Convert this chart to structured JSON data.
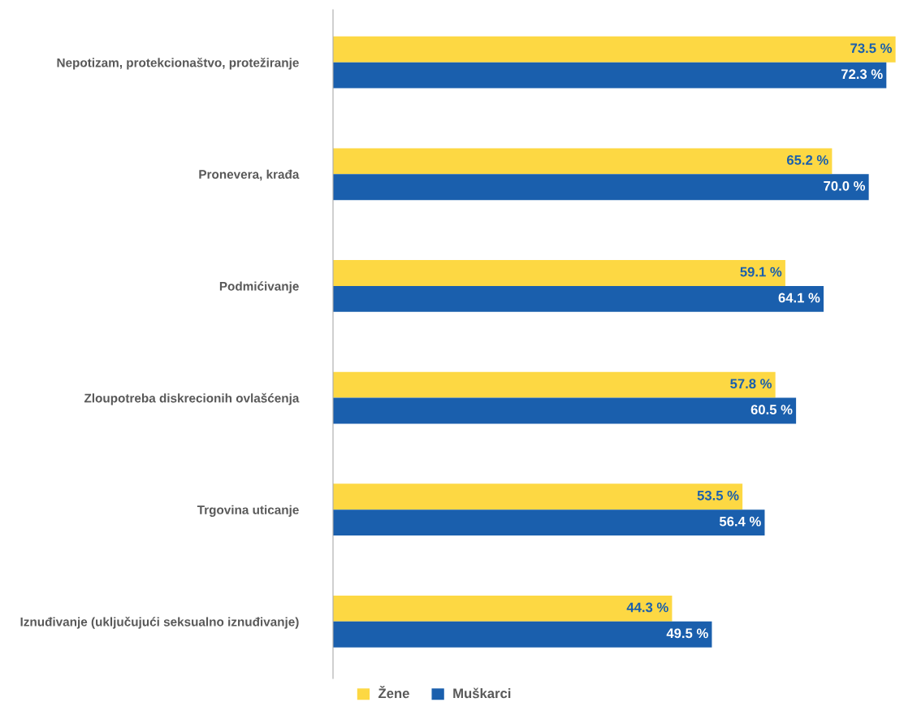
{
  "chart_data": {
    "type": "bar",
    "orientation": "horizontal",
    "categories": [
      "Nepotizam, protekcionaštvo, protežiranje",
      "Pronevera, krađa",
      "Podmićivanje",
      "Zloupotreba diskrecionih ovlašćenja",
      "Trgovina uticanje",
      "Iznuđivanje (uključujući seksualno iznuđivanje)"
    ],
    "series": [
      {
        "name": "Žene",
        "color": "#fdd843",
        "values": [
          73.5,
          65.2,
          59.1,
          57.8,
          53.5,
          44.3
        ],
        "value_labels": [
          "73.5 %",
          "65.2 %",
          "59.1 %",
          "57.8 %",
          "53.5 %",
          "44.3 %"
        ]
      },
      {
        "name": "Muškarci",
        "color": "#1a5fad",
        "values": [
          72.3,
          70.0,
          64.1,
          60.5,
          56.4,
          49.5
        ],
        "value_labels": [
          "72.3 %",
          "70.0 %",
          "64.1 %",
          "60.5 %",
          "56.4 %",
          "49.5 %"
        ]
      }
    ],
    "tick_labels": "y",
    "grid": false,
    "legend": "bottom"
  }
}
